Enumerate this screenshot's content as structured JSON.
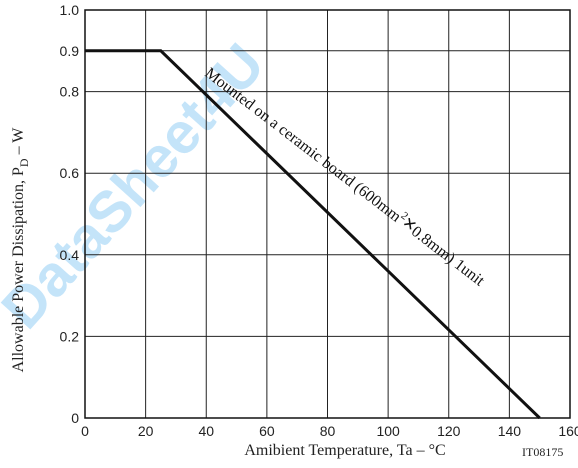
{
  "chart_data": {
    "type": "line",
    "title": "",
    "xlabel": "Amibient Temperature, Ta  –  °C",
    "ylabel_main": "Allowable Power Dissipation, P",
    "ylabel_sub": "D",
    "ylabel_tail": "  –  W",
    "xlim": [
      0,
      160
    ],
    "ylim": [
      0,
      1.0
    ],
    "x_ticks": [
      0,
      20,
      40,
      60,
      80,
      100,
      120,
      140,
      160
    ],
    "x_tick_labels": [
      "0",
      "20",
      "40",
      "60",
      "80",
      "100",
      "120",
      "140",
      "160"
    ],
    "y_ticks": [
      0,
      0.2,
      0.4,
      0.6,
      0.8,
      0.9,
      1.0
    ],
    "y_tick_labels": [
      "0",
      "0.2",
      "0.4",
      "0.6",
      "0.8",
      "0.9",
      "1.0"
    ],
    "grid": true,
    "series": [
      {
        "name": "",
        "x": [
          0,
          25,
          150
        ],
        "y": [
          0.9,
          0.9,
          0
        ]
      }
    ],
    "annotation_line1": "Mounted on a ceramic board (600mm",
    "annotation_sup": "2",
    "annotation_line2": "0.8mm) 1unit",
    "annotation_times": "×",
    "figure_code": "IT08175"
  },
  "watermark": "DataSheet4U",
  "colors": {
    "line": "#111111",
    "grid": "#222222",
    "watermark": "#5ab4f0"
  }
}
